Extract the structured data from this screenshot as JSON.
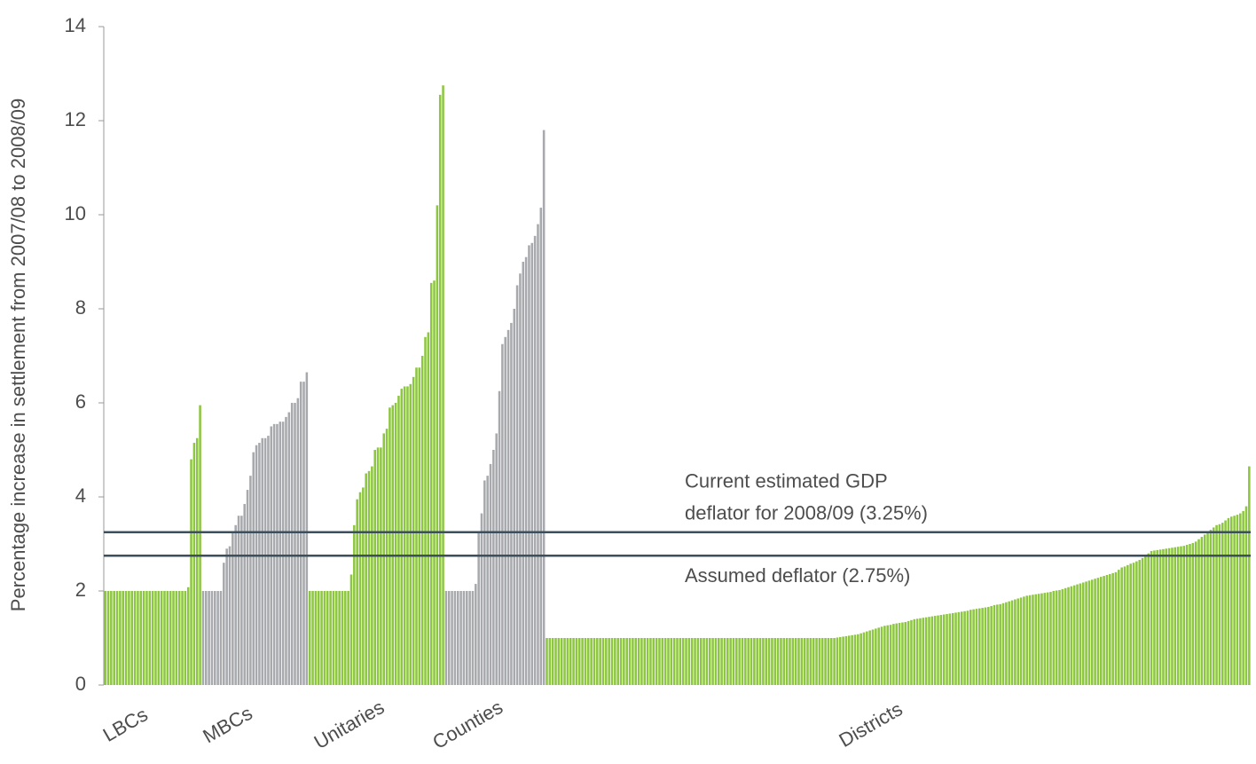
{
  "chart_data": {
    "type": "bar",
    "y_label": "Percentage increase in settlement from 2007/08 to 2008/09",
    "ylim": [
      0,
      14
    ],
    "yticks": [
      0,
      2,
      4,
      6,
      8,
      10,
      12,
      14
    ],
    "groups": [
      {
        "name": "LBCs",
        "color": "#8dc63f",
        "values": [
          2,
          2,
          2,
          2,
          2,
          2,
          2,
          2,
          2,
          2,
          2,
          2,
          2,
          2,
          2,
          2,
          2,
          2,
          2,
          2,
          2,
          2,
          2,
          2,
          2,
          2,
          2,
          2,
          2.08,
          4.8,
          5.15,
          5.25,
          5.95
        ]
      },
      {
        "name": "MBCs",
        "color": "#a7a9ac",
        "values": [
          2,
          2,
          2,
          2,
          2,
          2,
          2,
          2.6,
          2.9,
          2.95,
          3.25,
          3.4,
          3.6,
          3.6,
          3.85,
          4.15,
          4.45,
          4.95,
          5.1,
          5.15,
          5.25,
          5.25,
          5.3,
          5.5,
          5.55,
          5.55,
          5.6,
          5.6,
          5.7,
          5.8,
          6.0,
          6.0,
          6.1,
          6.45,
          6.45,
          6.65
        ]
      },
      {
        "name": "Unitaries",
        "color": "#8dc63f",
        "values": [
          2,
          2,
          2,
          2,
          2,
          2,
          2,
          2,
          2,
          2,
          2,
          2,
          2,
          2,
          2.35,
          3.4,
          3.95,
          4.1,
          4.2,
          4.5,
          4.55,
          4.65,
          5.0,
          5.05,
          5.05,
          5.35,
          5.45,
          5.9,
          5.95,
          6.0,
          6.15,
          6.3,
          6.35,
          6.35,
          6.4,
          6.55,
          6.75,
          6.75,
          7.0,
          7.4,
          7.5,
          8.55,
          8.6,
          10.2,
          12.55,
          12.75
        ]
      },
      {
        "name": "Counties",
        "color": "#a7a9ac",
        "values": [
          2,
          2,
          2,
          2,
          2,
          2,
          2,
          2,
          2,
          2,
          2.15,
          3.25,
          3.65,
          4.35,
          4.45,
          4.7,
          5.0,
          5.35,
          6.25,
          7.25,
          7.4,
          7.55,
          7.7,
          8.0,
          8.5,
          8.75,
          9.0,
          9.1,
          9.35,
          9.4,
          9.55,
          9.8,
          10.15,
          11.8
        ]
      },
      {
        "name": "Districts",
        "color": "#8dc63f",
        "values": [
          1,
          1,
          1,
          1,
          1,
          1,
          1,
          1,
          1,
          1,
          1,
          1,
          1,
          1,
          1,
          1,
          1,
          1,
          1,
          1,
          1,
          1,
          1,
          1,
          1,
          1,
          1,
          1,
          1,
          1,
          1,
          1,
          1,
          1,
          1,
          1,
          1,
          1,
          1,
          1,
          1,
          1,
          1,
          1,
          1,
          1,
          1,
          1,
          1,
          1,
          1,
          1,
          1,
          1,
          1,
          1,
          1,
          1,
          1,
          1,
          1,
          1,
          1,
          1,
          1,
          1,
          1,
          1,
          1,
          1,
          1,
          1,
          1,
          1,
          1,
          1,
          1,
          1,
          1,
          1,
          1,
          1,
          1,
          1,
          1,
          1,
          1,
          1,
          1,
          1,
          1,
          1,
          1,
          1,
          1,
          1,
          1,
          1.0,
          1.01,
          1.02,
          1.03,
          1.04,
          1.05,
          1.06,
          1.07,
          1.08,
          1.1,
          1.12,
          1.14,
          1.16,
          1.18,
          1.2,
          1.22,
          1.24,
          1.26,
          1.27,
          1.28,
          1.3,
          1.31,
          1.32,
          1.33,
          1.34,
          1.36,
          1.38,
          1.4,
          1.41,
          1.42,
          1.43,
          1.44,
          1.45,
          1.46,
          1.47,
          1.48,
          1.49,
          1.5,
          1.51,
          1.52,
          1.53,
          1.54,
          1.55,
          1.56,
          1.57,
          1.58,
          1.6,
          1.61,
          1.62,
          1.63,
          1.64,
          1.65,
          1.66,
          1.68,
          1.7,
          1.71,
          1.72,
          1.74,
          1.76,
          1.78,
          1.8,
          1.82,
          1.84,
          1.86,
          1.88,
          1.9,
          1.91,
          1.92,
          1.93,
          1.94,
          1.95,
          1.96,
          1.97,
          1.98,
          2.0,
          2.01,
          2.02,
          2.04,
          2.06,
          2.08,
          2.1,
          2.12,
          2.14,
          2.16,
          2.18,
          2.2,
          2.22,
          2.24,
          2.26,
          2.28,
          2.3,
          2.32,
          2.34,
          2.36,
          2.38,
          2.4,
          2.45,
          2.5,
          2.52,
          2.55,
          2.58,
          2.6,
          2.63,
          2.66,
          2.7,
          2.75,
          2.8,
          2.85,
          2.86,
          2.87,
          2.88,
          2.89,
          2.9,
          2.91,
          2.92,
          2.93,
          2.94,
          2.95,
          2.96,
          2.98,
          3.0,
          3.02,
          3.05,
          3.1,
          3.15,
          3.2,
          3.25,
          3.3,
          3.35,
          3.4,
          3.42,
          3.45,
          3.5,
          3.55,
          3.58,
          3.6,
          3.62,
          3.65,
          3.7,
          3.8,
          4.65
        ]
      }
    ],
    "reference_lines": [
      {
        "value": 3.25,
        "color": "#3d4f5c",
        "label": [
          "Current estimated GDP",
          "deflator for 2008/09 (3.25%)"
        ]
      },
      {
        "value": 2.75,
        "color": "#3d4f5c",
        "label": [
          "Assumed deflator (2.75%)"
        ]
      }
    ]
  }
}
